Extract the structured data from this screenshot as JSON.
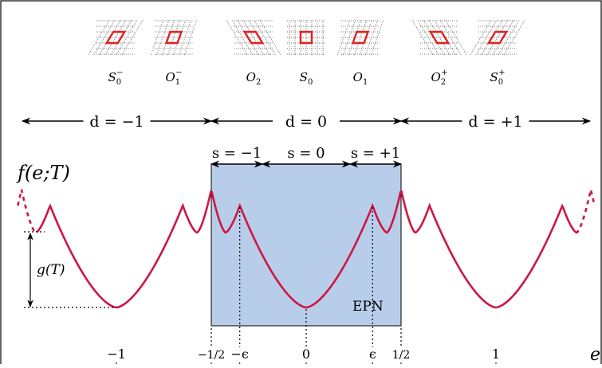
{
  "colors": {
    "curve": "#cc1744",
    "band_fill": "#b8cde9",
    "lattice_cell": "#e02020",
    "ink": "#000000"
  },
  "lattices": [
    {
      "label": "S",
      "sub": "0",
      "sup": "−",
      "shear": 0.6,
      "dir": 1
    },
    {
      "label": "O",
      "sub": "1",
      "sup": "−",
      "shear": 0.35,
      "dir": 1
    },
    {
      "label": "O",
      "sub": "2",
      "sup": "",
      "shear": 0.6,
      "dir": -1
    },
    {
      "label": "S",
      "sub": "0",
      "sup": "",
      "shear": 0.0,
      "dir": 1
    },
    {
      "label": "O",
      "sub": "1",
      "sup": "",
      "shear": 0.35,
      "dir": 1
    },
    {
      "label": "O",
      "sub": "2",
      "sup": "+",
      "shear": 0.6,
      "dir": -1
    },
    {
      "label": "S",
      "sub": "0",
      "sup": "+",
      "shear": 0.6,
      "dir": 1
    }
  ],
  "d_bands": [
    "d = −1",
    "d = 0",
    "d = +1"
  ],
  "s_bands": [
    "s = −1",
    "s = 0",
    "s = +1"
  ],
  "function_label": "f(e;T)",
  "g_label": "g(T)",
  "epn_label": "EPN",
  "axis_label": "e",
  "ticks": [
    {
      "label": "−1",
      "e": -1
    },
    {
      "label": "−1/2",
      "e": -0.5
    },
    {
      "label": "−ϵ",
      "e": -0.35
    },
    {
      "label": "0",
      "e": 0
    },
    {
      "label": "ϵ",
      "e": 0.35
    },
    {
      "label": "1/2",
      "e": 0.5
    },
    {
      "label": "1",
      "e": 1
    }
  ],
  "curve": {
    "epsilon": 0.35,
    "period": 1,
    "e_range": [
      -1.55,
      1.55
    ]
  }
}
